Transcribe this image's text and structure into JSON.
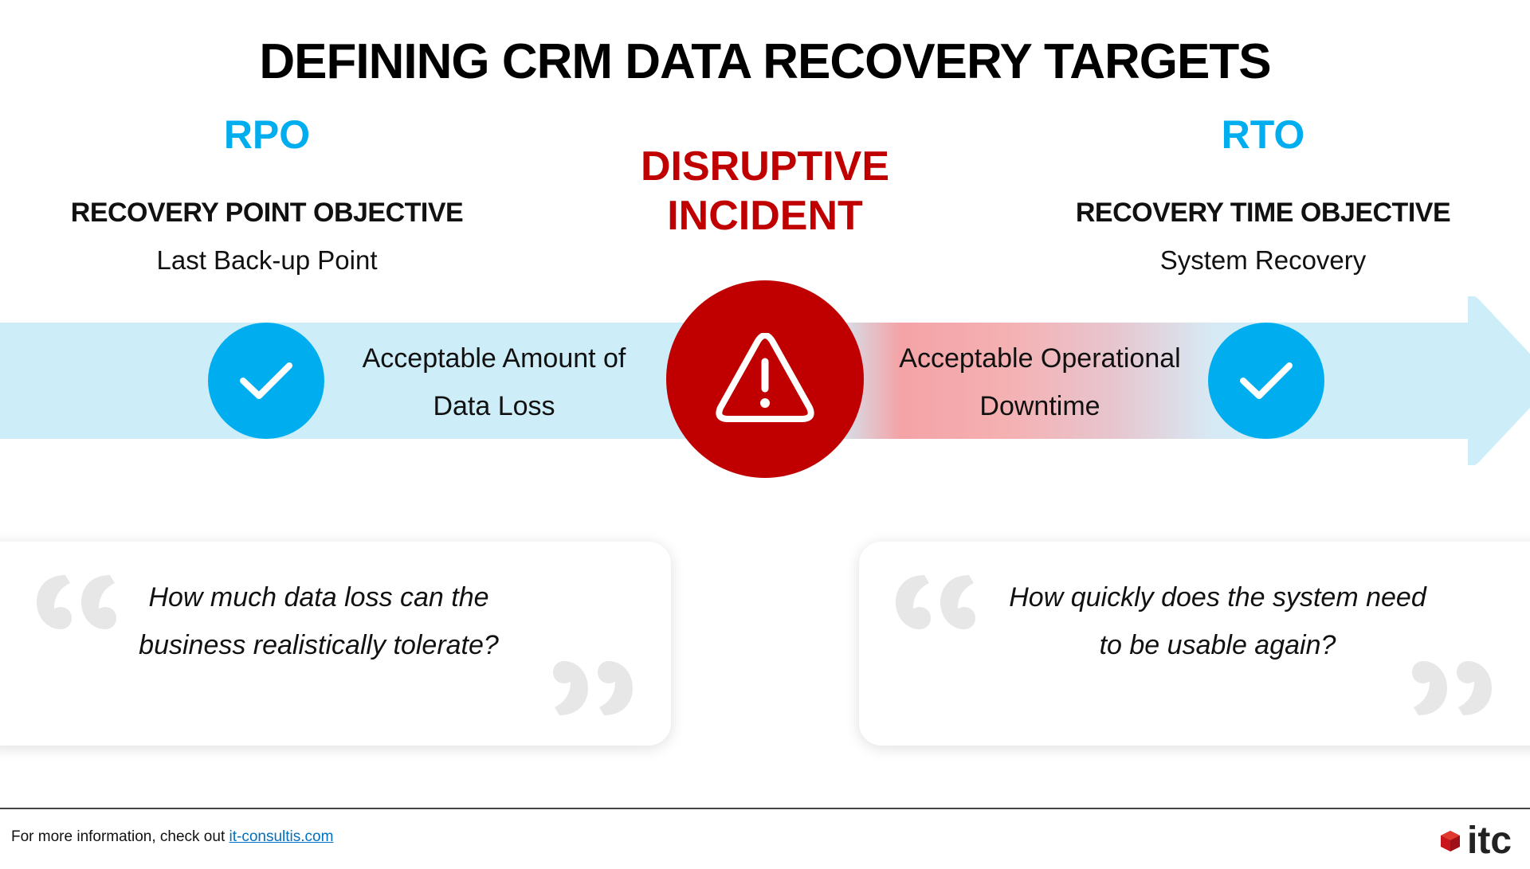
{
  "title": "DEFINING CRM DATA RECOVERY TARGETS",
  "rpo": {
    "acronym": "RPO",
    "objective": "RECOVERY POINT OBJECTIVE",
    "subtitle": "Last Back-up Point",
    "band_text_line1": "Acceptable Amount of",
    "band_text_line2": "Data Loss",
    "question_line1": "How much data loss can the",
    "question_line2": "business realistically tolerate?"
  },
  "incident": {
    "line1": "DISRUPTIVE",
    "line2": "INCIDENT",
    "icon": "warning-triangle-icon"
  },
  "rto": {
    "acronym": "RTO",
    "objective": "RECOVERY TIME OBJECTIVE",
    "subtitle": "System Recovery",
    "band_text_line1": "Acceptable Operational",
    "band_text_line2": "Downtime",
    "question_line1": "How quickly does the system need",
    "question_line2": "to be usable again?"
  },
  "footer": {
    "prefix": "For more information, check out",
    "link_text": "it-consultis.com",
    "logo_text": "itc"
  },
  "colors": {
    "accent_blue": "#00aeef",
    "incident_red": "#c00000",
    "band_light_blue": "#cdeef9",
    "link_blue": "#0070c0"
  }
}
